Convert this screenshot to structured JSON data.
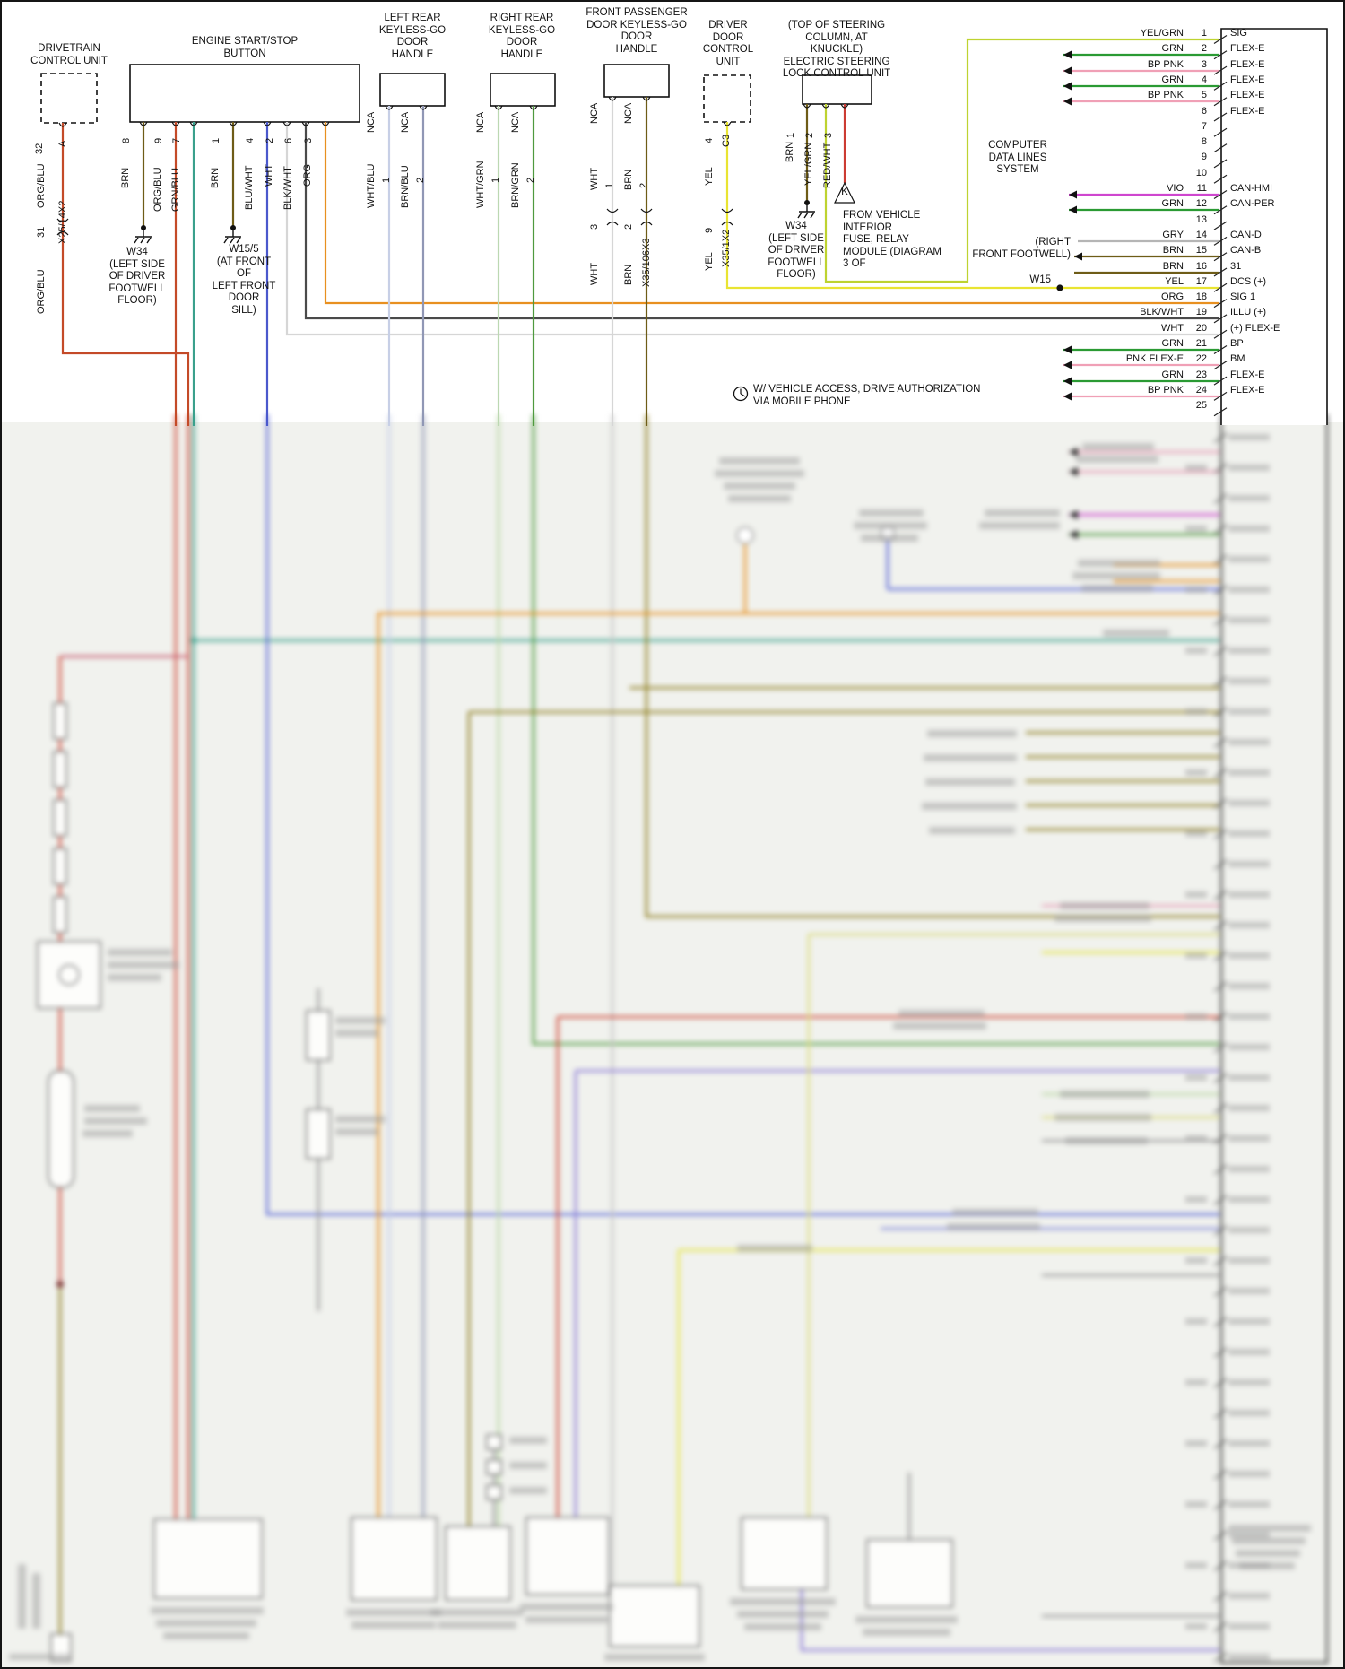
{
  "titles": {
    "drivetrain": "DRIVETRAIN\nCONTROL UNIT",
    "engine": "ENGINE START/STOP\nBUTTON",
    "left_rear": "LEFT REAR\nKEYLESS-GO\nDOOR\nHANDLE",
    "right_rear": "RIGHT REAR\nKEYLESS-GO\nDOOR\nHANDLE",
    "front_pass": "FRONT PASSENGER\nDOOR KEYLESS-GO\nDOOR\nHANDLE",
    "driver_door": "DRIVER\nDOOR\nCONTROL\nUNIT",
    "steering_lock": "(TOP OF STEERING\nCOLUMN, AT KNUCKLE)\nELECTRIC STEERING\nLOCK CONTROL UNIT"
  },
  "notes": {
    "w34_left": "W34\n(LEFT SIDE\nOF DRIVER\nFOOTWELL\nFLOOR)",
    "w15_5": "W15/5\n(AT FRONT\nOF\nLEFT FRONT\nDOOR\nSILL)",
    "w34_right": "W34\n(LEFT SIDE\nOF DRIVER\nFOOTWELL\nFLOOR)",
    "fuse_relay": "FROM VEHICLE\nINTERIOR\nFUSE, RELAY\nMODULE (DIAGRAM\n3 OF",
    "computer": "COMPUTER\nDATA LINES\nSYSTEM",
    "footwell": "(RIGHT\nFRONT FOOTWELL)",
    "mobile": "W/ VEHICLE ACCESS, DRIVE AUTHORIZATION\nVIA MOBILE PHONE",
    "w15": "W15",
    "k_symbol": "K"
  },
  "drivetrain": {
    "pin": "32",
    "conn": "A",
    "wire_top": "ORG/BLU",
    "splice_left": "31",
    "splice": "X25/14X2",
    "wire_bottom": "ORG/BLU"
  },
  "engine": {
    "pins": [
      "8",
      "9",
      "7",
      "1",
      "4",
      "2",
      "6",
      "3"
    ],
    "wires": [
      "BRN",
      "ORG/BLU",
      "GRN/BLU",
      "BRN",
      "BLU/WHT",
      "WHT",
      "BLK/WHT",
      "ORG"
    ]
  },
  "left_rear": {
    "pins": [
      "NCA",
      "NCA"
    ],
    "nums": [
      "1",
      "2"
    ],
    "wires": [
      "WHT/BLU",
      "BRN/BLU"
    ]
  },
  "right_rear": {
    "pins": [
      "NCA",
      "NCA"
    ],
    "nums": [
      "1",
      "2"
    ],
    "wires": [
      "WHT/GRN",
      "BRN/GRN"
    ]
  },
  "front_pass": {
    "pins": [
      "NCA",
      "NCA"
    ],
    "nums": [
      "1",
      "2"
    ],
    "wires": [
      "WHT",
      "BRN"
    ],
    "splice_nums": [
      "3",
      "2"
    ],
    "splice": "X35/106X3",
    "wires2": [
      "WHT",
      "BRN"
    ]
  },
  "driver_door": {
    "pin": "4",
    "conn": "C3",
    "wire": "YEL",
    "splice_num": "9",
    "splice": "X35/1X2",
    "wire2": "YEL"
  },
  "steering_lock": {
    "pins": [
      "1",
      "2",
      "3"
    ],
    "wires": [
      "BRN",
      "YEL/GRN",
      "RED/WHT"
    ]
  },
  "connector": {
    "rows": [
      {
        "n": "1",
        "wire": "YEL/GRN",
        "label": "SIG"
      },
      {
        "n": "2",
        "wire": "GRN",
        "label": "FLEX-E"
      },
      {
        "n": "3",
        "wire": "BP PNK",
        "label": "FLEX-E"
      },
      {
        "n": "4",
        "wire": "GRN",
        "label": "FLEX-E"
      },
      {
        "n": "5",
        "wire": "BP PNK",
        "label": "FLEX-E"
      },
      {
        "n": "6",
        "wire": "",
        "label": "FLEX-E"
      },
      {
        "n": "7",
        "wire": "",
        "label": ""
      },
      {
        "n": "8",
        "wire": "",
        "label": ""
      },
      {
        "n": "9",
        "wire": "",
        "label": ""
      },
      {
        "n": "10",
        "wire": "",
        "label": ""
      },
      {
        "n": "11",
        "wire": "VIO",
        "label": "CAN-HMI"
      },
      {
        "n": "12",
        "wire": "GRN",
        "label": "CAN-PER"
      },
      {
        "n": "13",
        "wire": "",
        "label": ""
      },
      {
        "n": "14",
        "wire": "GRY",
        "label": "CAN-D"
      },
      {
        "n": "15",
        "wire": "BRN",
        "label": "CAN-B"
      },
      {
        "n": "16",
        "wire": "BRN",
        "label": "31"
      },
      {
        "n": "17",
        "wire": "YEL",
        "label": "DCS (+)"
      },
      {
        "n": "18",
        "wire": "ORG",
        "label": "SIG 1"
      },
      {
        "n": "19",
        "wire": "BLK/WHT",
        "label": "ILLU (+)"
      },
      {
        "n": "20",
        "wire": "WHT",
        "label": "(+) FLEX-E"
      },
      {
        "n": "21",
        "wire": "GRN",
        "label": "BP"
      },
      {
        "n": "22",
        "wire": "PNK FLEX-E",
        "label": "BM"
      },
      {
        "n": "23",
        "wire": "GRN",
        "label": "FLEX-E"
      },
      {
        "n": "24",
        "wire": "BP PNK",
        "label": "FLEX-E"
      },
      {
        "n": "25",
        "wire": "",
        "label": ""
      }
    ]
  },
  "palette": {
    "org_blu": "#c44a28",
    "brn": "#6e5c17",
    "grn_blu": "#3aa08c",
    "blu_wht": "#4a58cc",
    "wht": "#d6d6d6",
    "blk_wht": "#4a4a4a",
    "org": "#e89020",
    "wht_blu": "#c7cfe6",
    "brn_blu": "#9097b5",
    "wht_grn": "#bcd8b2",
    "brn_grn": "#4f9a3e",
    "yel": "#e9e432",
    "yel_grn": "#bed330",
    "red_wht": "#cc3b33",
    "vio": "#cf46cf",
    "grn": "#2a9a33",
    "bp_pnk": "#f0a0b6",
    "gry": "#b5b5b5"
  }
}
